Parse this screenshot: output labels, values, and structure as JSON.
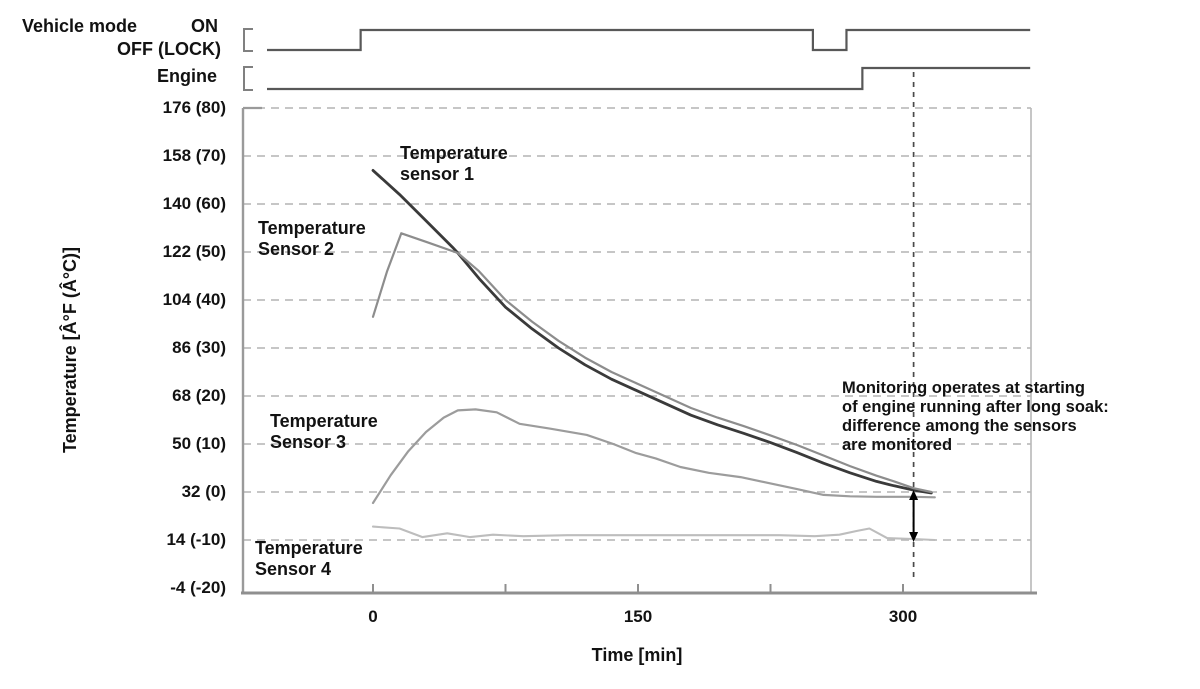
{
  "timing": {
    "vehicle_mode_label": "Vehicle mode",
    "on_label": "ON",
    "off_label": "OFF (LOCK)",
    "engine_label": "Engine",
    "rows": [
      {
        "name": "vehicle-mode",
        "end_t": 372,
        "transitions": [
          {
            "t": -60,
            "level": 0
          },
          {
            "t": -7,
            "level": 1
          },
          {
            "t": 249,
            "level": 0
          },
          {
            "t": 268,
            "level": 1
          }
        ]
      },
      {
        "name": "engine",
        "end_t": 372,
        "transitions": [
          {
            "t": -60,
            "level": 0
          },
          {
            "t": 277,
            "level": 1
          }
        ]
      }
    ]
  },
  "chart_data": {
    "type": "line",
    "title": "",
    "xlabel": "Time [min]",
    "ylabel": "Temperature [Â°F (Â°C)]",
    "xlim_min": [
      -73,
      372
    ],
    "ylim_c": [
      -20,
      80
    ],
    "grid": "dashed-horizontal",
    "x_ticks": [
      {
        "t": 0,
        "label": "0"
      },
      {
        "t": 75,
        "label": ""
      },
      {
        "t": 150,
        "label": "150"
      },
      {
        "t": 225,
        "label": ""
      },
      {
        "t": 300,
        "label": "300"
      }
    ],
    "y_ticks": [
      {
        "c": 80,
        "label": "176 (80)",
        "grid": true
      },
      {
        "c": 70,
        "label": "158 (70)",
        "grid": true
      },
      {
        "c": 60,
        "label": "140 (60)",
        "grid": true
      },
      {
        "c": 50,
        "label": "122 (50)",
        "grid": true
      },
      {
        "c": 40,
        "label": "104 (40)",
        "grid": true
      },
      {
        "c": 30,
        "label": "86 (30)",
        "grid": true
      },
      {
        "c": 20,
        "label": "68 (20)",
        "grid": true
      },
      {
        "c": 10,
        "label": "50 (10)",
        "grid": true
      },
      {
        "c": 0,
        "label": "32 (0)",
        "grid": true
      },
      {
        "c": -10,
        "label": "14 (-10)",
        "grid": true
      },
      {
        "c": -20,
        "label": "-4 (-20)",
        "grid": false
      }
    ],
    "series": [
      {
        "name": "temperature-sensor-1",
        "label": "Temperature\nsensor 1",
        "color": "#3a3a3a",
        "points": [
          [
            0,
            67
          ],
          [
            15,
            62
          ],
          [
            30,
            56.5
          ],
          [
            45,
            51
          ],
          [
            48,
            49.8
          ],
          [
            60,
            44.5
          ],
          [
            75,
            38.5
          ],
          [
            90,
            34
          ],
          [
            105,
            30
          ],
          [
            120,
            26.5
          ],
          [
            135,
            23.5
          ],
          [
            150,
            21
          ],
          [
            165,
            18.5
          ],
          [
            180,
            16
          ],
          [
            195,
            14
          ],
          [
            210,
            12.2
          ],
          [
            225,
            10.3
          ],
          [
            240,
            8.2
          ],
          [
            255,
            6
          ],
          [
            270,
            4
          ],
          [
            285,
            2.2
          ],
          [
            295,
            1.3
          ],
          [
            306,
            0.4
          ],
          [
            316,
            -0.2
          ]
        ]
      },
      {
        "name": "temperature-sensor-2",
        "label": "Temperature\nSensor 2",
        "color": "#8d8d8d",
        "points": [
          [
            0,
            36.5
          ],
          [
            8,
            46
          ],
          [
            16,
            53.9
          ],
          [
            31,
            52
          ],
          [
            48,
            49.8
          ],
          [
            60,
            46
          ],
          [
            75,
            40
          ],
          [
            90,
            35.5
          ],
          [
            105,
            31.5
          ],
          [
            120,
            28
          ],
          [
            135,
            25
          ],
          [
            150,
            22.5
          ],
          [
            165,
            20
          ],
          [
            180,
            17.5
          ],
          [
            195,
            15.5
          ],
          [
            210,
            13.7
          ],
          [
            225,
            11.8
          ],
          [
            240,
            9.8
          ],
          [
            255,
            7.6
          ],
          [
            270,
            5.4
          ],
          [
            285,
            3.4
          ],
          [
            295,
            2.2
          ],
          [
            306,
            0.8
          ],
          [
            316,
            0
          ]
        ]
      },
      {
        "name": "temperature-sensor-3",
        "label": "Temperature\nSensor 3",
        "color": "#9c9c9c",
        "points": [
          [
            0,
            -2.3
          ],
          [
            10,
            3.5
          ],
          [
            20,
            8.5
          ],
          [
            30,
            12.5
          ],
          [
            40,
            15.5
          ],
          [
            48,
            17
          ],
          [
            58,
            17.2
          ],
          [
            70,
            16.6
          ],
          [
            83,
            14.2
          ],
          [
            100,
            13.2
          ],
          [
            121,
            11.9
          ],
          [
            136,
            10
          ],
          [
            149,
            8.1
          ],
          [
            160,
            7
          ],
          [
            174,
            5.2
          ],
          [
            190,
            4
          ],
          [
            208,
            3.1
          ],
          [
            225,
            1.8
          ],
          [
            240,
            0.6
          ],
          [
            255,
            -0.6
          ],
          [
            270,
            -0.9
          ],
          [
            285,
            -1
          ],
          [
            306,
            -1
          ],
          [
            318,
            -1.1
          ]
        ]
      },
      {
        "name": "temperature-sensor-4",
        "label": "Temperature\nSensor 4",
        "color": "#bdbdbd",
        "points": [
          [
            0,
            -7.2
          ],
          [
            15,
            -7.6
          ],
          [
            28,
            -9.4
          ],
          [
            42,
            -8.6
          ],
          [
            55,
            -9.4
          ],
          [
            68,
            -8.9
          ],
          [
            85,
            -9.2
          ],
          [
            110,
            -9
          ],
          [
            140,
            -9
          ],
          [
            170,
            -9
          ],
          [
            200,
            -9
          ],
          [
            230,
            -9
          ],
          [
            250,
            -9.2
          ],
          [
            264,
            -8.9
          ],
          [
            274,
            -8.1
          ],
          [
            281,
            -7.6
          ],
          [
            291,
            -9.6
          ],
          [
            306,
            -9.8
          ],
          [
            318,
            -10
          ]
        ]
      }
    ],
    "monitor_line_t": 306,
    "difference_arrow": {
      "t": 306,
      "from_c": 0,
      "to_c": -10
    },
    "annotation": "Monitoring operates at starting\nof engine running after long soak:\ndifference among the sensors\nare monitored"
  }
}
